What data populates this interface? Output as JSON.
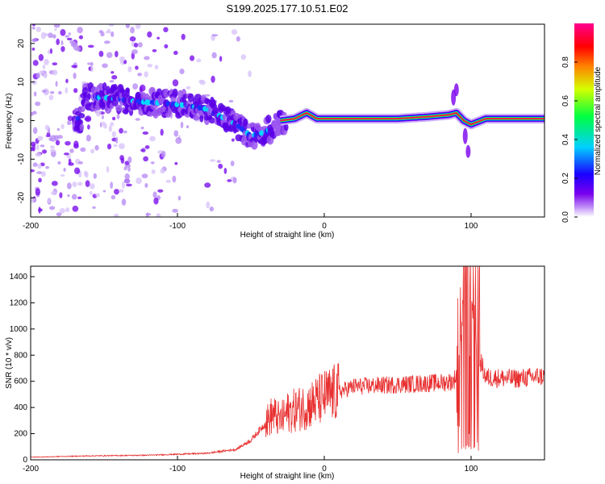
{
  "chart_data": [
    {
      "type": "heatmap",
      "title": "S199.2025.177.10.51.E02",
      "xlabel": "Height of straight line (km)",
      "ylabel": "Frequency (Hz)",
      "xlim": [
        -200,
        150
      ],
      "ylim": [
        -25,
        25
      ],
      "xticks": [
        -200,
        -100,
        0,
        100
      ],
      "yticks": [
        -20,
        -10,
        0,
        10,
        20
      ],
      "grid": false,
      "colorbar": {
        "label": "Normalized spectral amplitude",
        "range": [
          0,
          1
        ],
        "ticks": [
          0.0,
          0.2,
          0.4,
          0.6,
          0.8
        ],
        "tick_labels": [
          "0.0",
          "0.2",
          "0.4",
          "0.6",
          "0.8"
        ],
        "colors": [
          "#ffffff",
          "#b57cf4",
          "#7a00ee",
          "#1a00ff",
          "#00d0ff",
          "#00ff40",
          "#d4ff00",
          "#ff8000",
          "#ff0000",
          "#ff0090"
        ]
      },
      "ridge": {
        "x": [
          -165,
          -150,
          -130,
          -110,
          -95,
          -80,
          -70,
          -60,
          -50,
          -40,
          -30,
          -20,
          -12,
          -5,
          0,
          10,
          30,
          50,
          70,
          85,
          90,
          95,
          100,
          110,
          150
        ],
        "y": [
          6,
          6,
          5,
          4.5,
          4,
          3,
          1,
          -1,
          -4,
          -3,
          0,
          0.5,
          2,
          0.5,
          0.5,
          0.5,
          0.5,
          0.5,
          1,
          1.5,
          2,
          0,
          -1,
          0.5,
          0.5
        ]
      }
    },
    {
      "type": "line",
      "xlabel": "Height of straight line (km)",
      "ylabel": "SNR (10 * v/v)",
      "xlim": [
        -200,
        150
      ],
      "ylim": [
        0,
        1480
      ],
      "xticks": [
        -200,
        -100,
        0,
        100
      ],
      "yticks": [
        0,
        200,
        400,
        600,
        800,
        1000,
        1200,
        1400
      ],
      "grid": false,
      "line_color": "#e83030",
      "envelope": {
        "x": [
          -200,
          -160,
          -120,
          -80,
          -60,
          -50,
          -40,
          -35,
          -30,
          -25,
          -20,
          -10,
          0,
          10,
          20,
          40,
          60,
          80,
          88,
          92,
          95,
          100,
          105,
          110,
          130,
          150
        ],
        "y": [
          20,
          30,
          35,
          50,
          80,
          150,
          280,
          350,
          300,
          360,
          380,
          420,
          480,
          520,
          560,
          570,
          580,
          590,
          600,
          700,
          1000,
          1300,
          800,
          630,
          620,
          640
        ]
      }
    }
  ]
}
